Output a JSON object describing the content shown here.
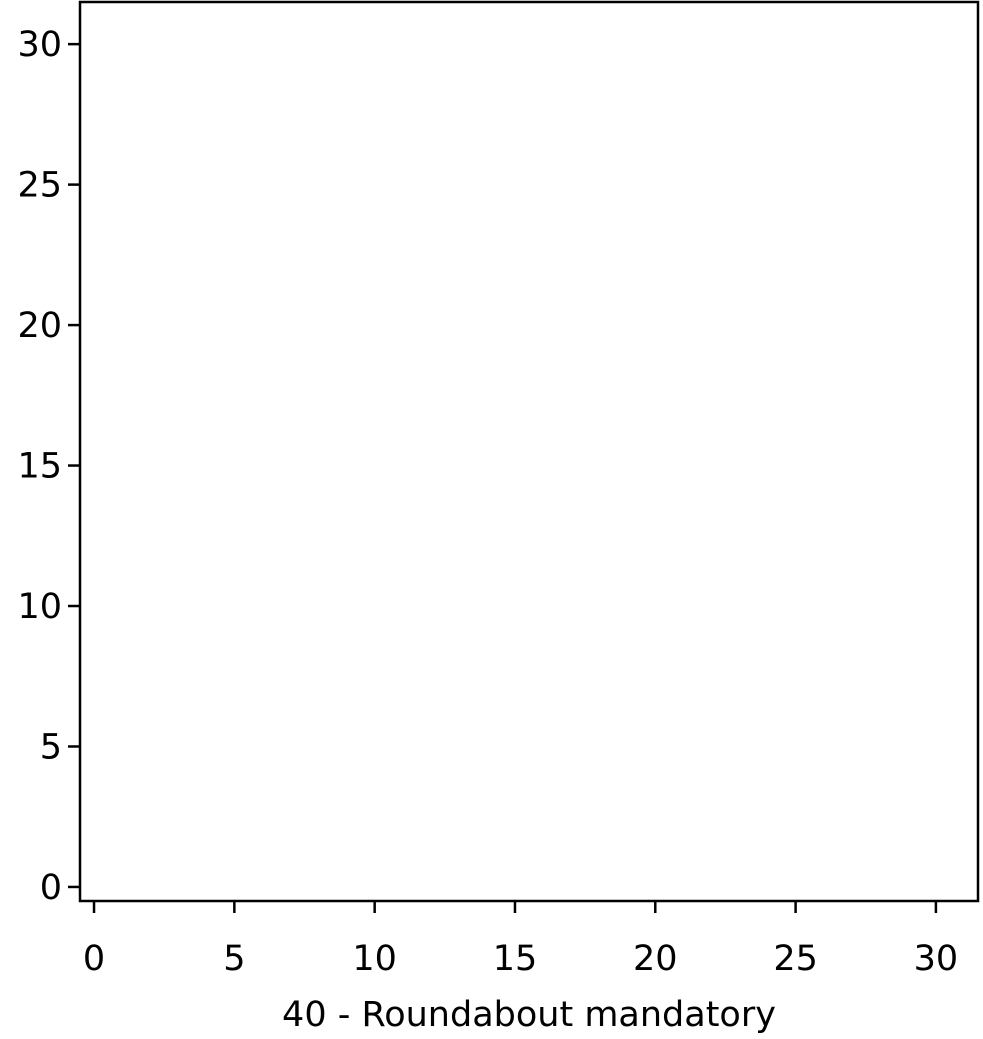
{
  "chart_data": {
    "type": "heatmap",
    "xlabel": "40 - Roundabout mandatory",
    "ylabel": "",
    "x_ticks": [
      0,
      5,
      10,
      15,
      20,
      25,
      30
    ],
    "y_ticks": [
      0,
      5,
      10,
      15,
      20,
      25,
      30
    ],
    "xlim": [
      -0.5,
      31.5
    ],
    "ylim": [
      31.5,
      -0.5
    ],
    "grid": false,
    "image_size": [
      32,
      32
    ],
    "colors": {
      "sign_blue": "#18488a",
      "symbol_white": "#ffffff",
      "background": "#ffffff",
      "edge_gray": "#e6e6e6"
    }
  }
}
